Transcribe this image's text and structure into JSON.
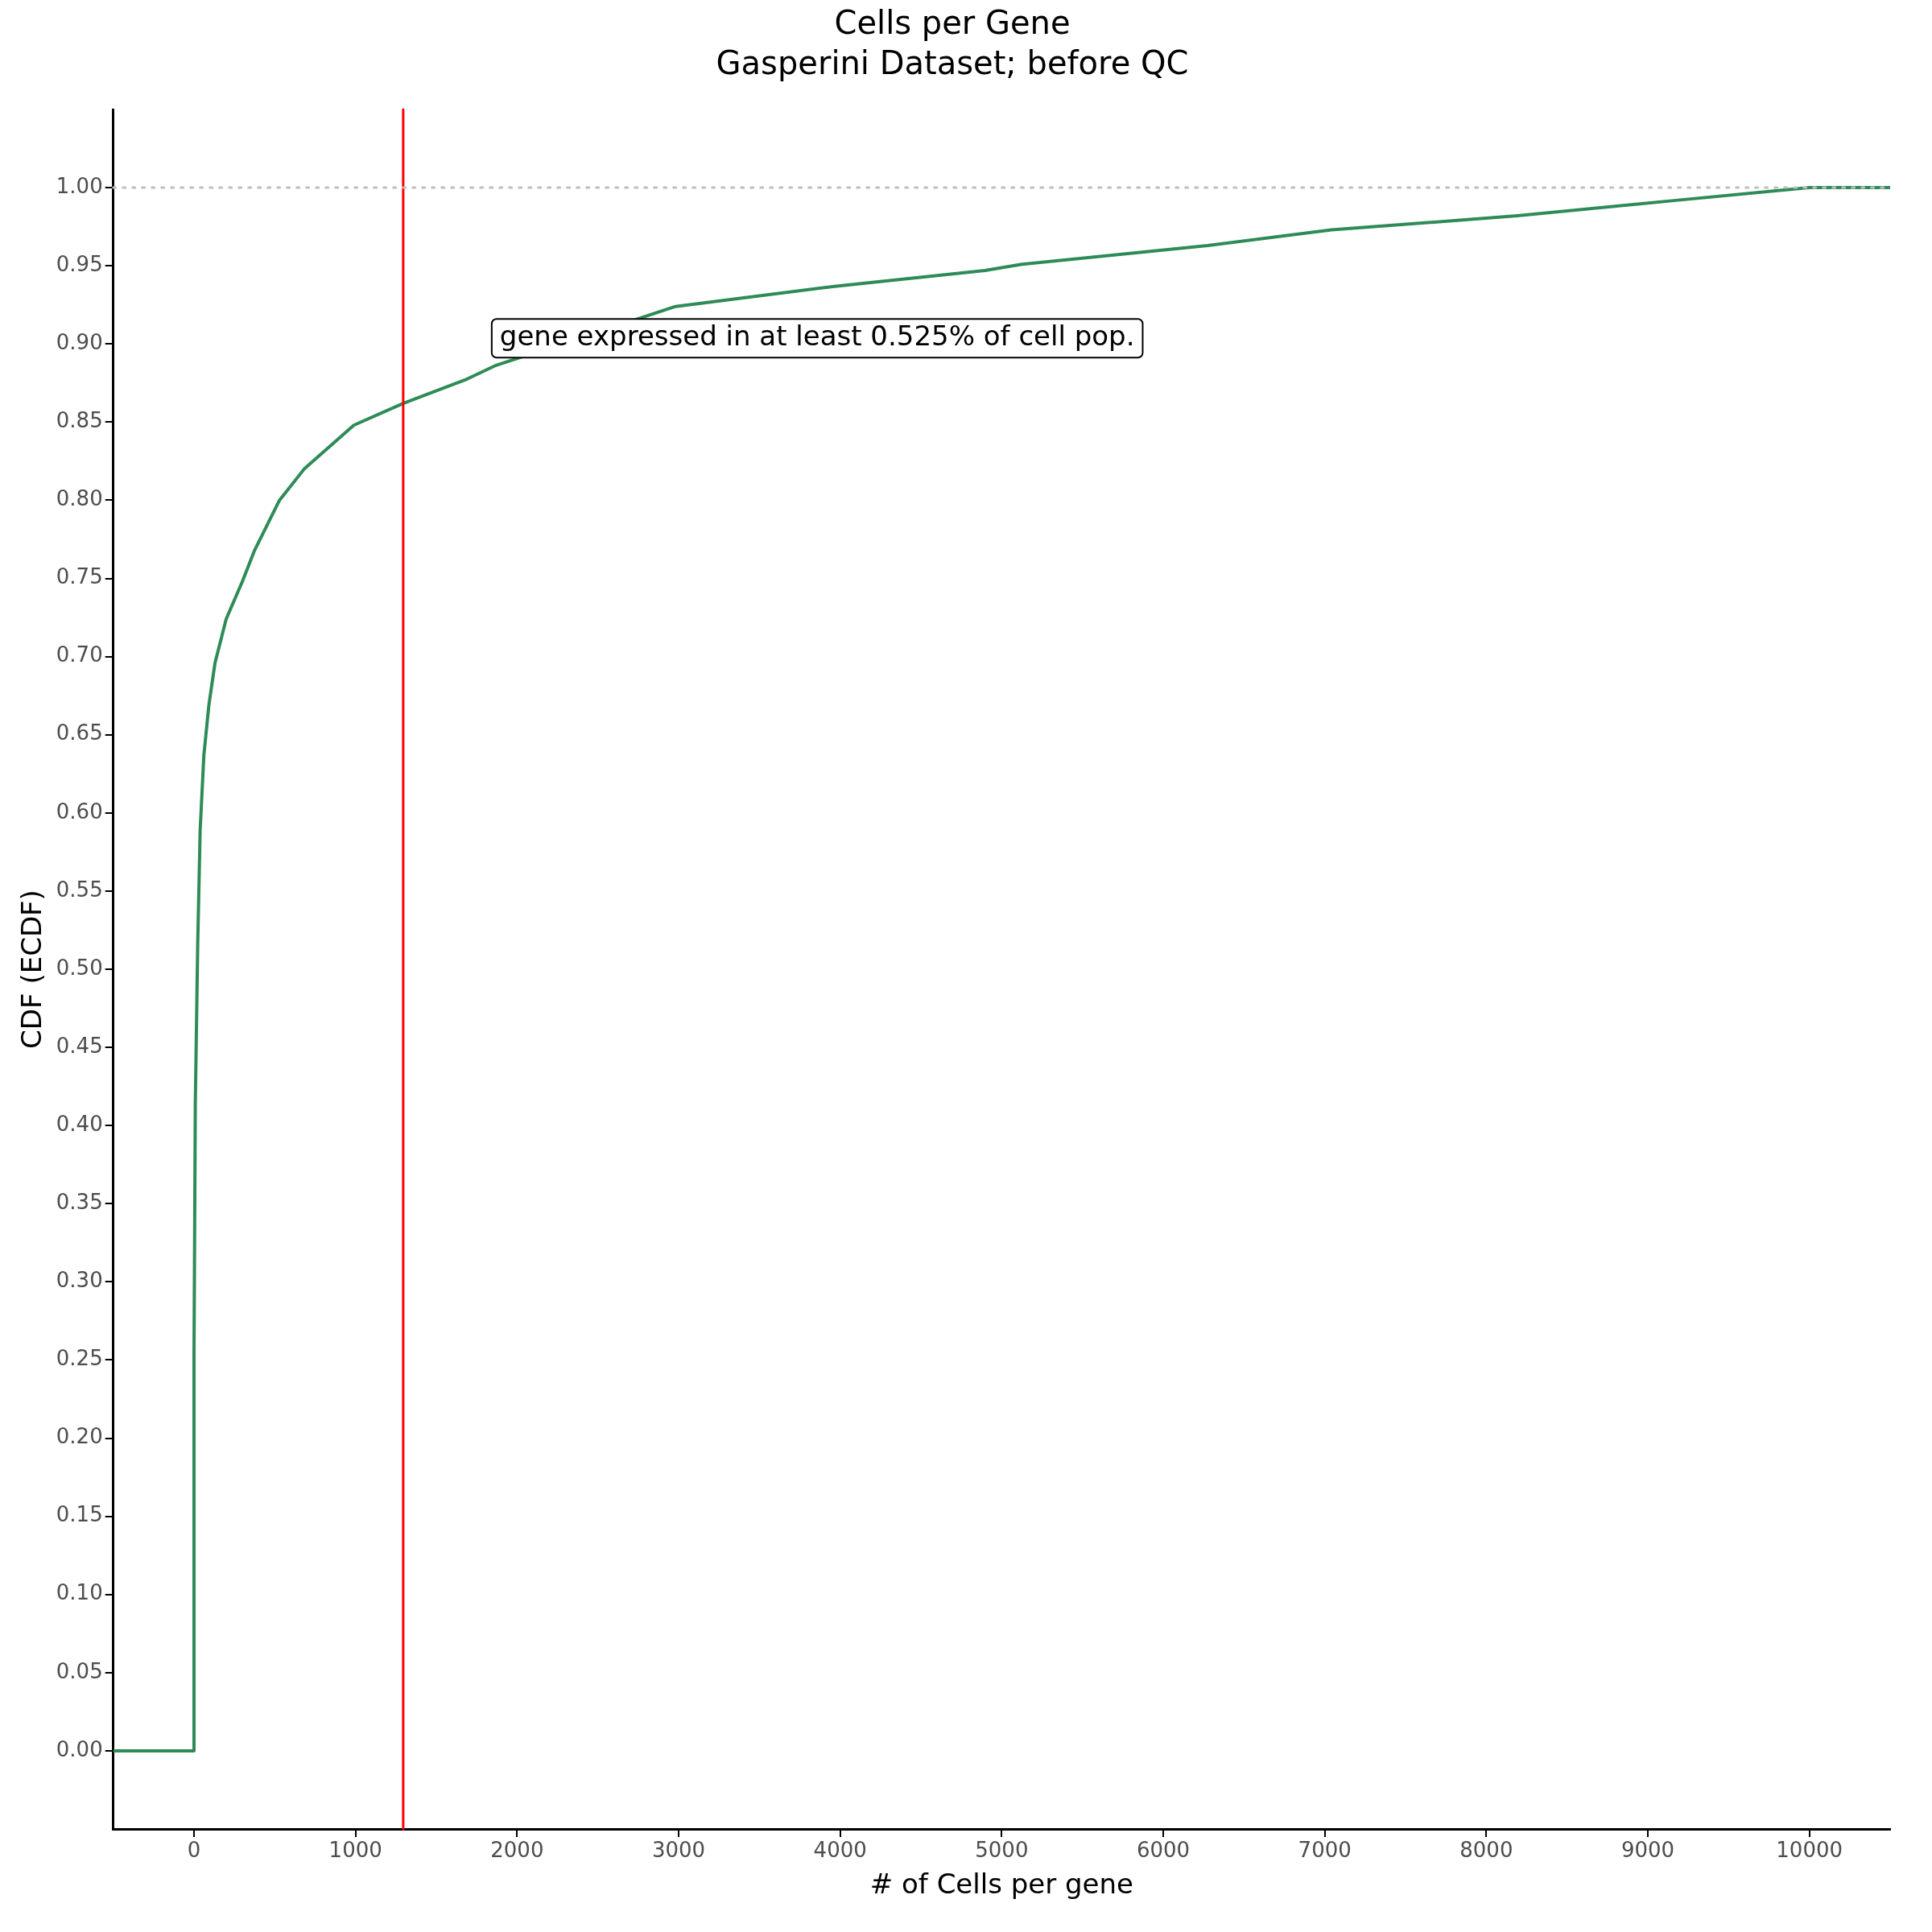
{
  "chart_data": {
    "type": "line",
    "title": "Cells per Gene",
    "subtitle": "Gasperini Dataset; before QC",
    "xlabel": "# of Cells per gene",
    "ylabel": "CDF (ECDF)",
    "series": [
      {
        "color": "#2e8b57",
        "x": [
          -500,
          0,
          0,
          8,
          23,
          38,
          61,
          92,
          130,
          199,
          299,
          375,
          529,
          682,
          989,
          1295,
          1678,
          1862,
          2981,
          3977,
          4897,
          5126,
          6276,
          7042,
          8192,
          9188,
          10000,
          10500
        ],
        "values": [
          0,
          0,
          0.254,
          0.414,
          0.517,
          0.589,
          0.637,
          0.669,
          0.696,
          0.724,
          0.748,
          0.768,
          0.8,
          0.82,
          0.848,
          0.862,
          0.877,
          0.886,
          0.924,
          0.937,
          0.947,
          0.951,
          0.963,
          0.973,
          0.982,
          0.992,
          1,
          1
        ]
      }
    ],
    "xlim": [
      -500,
      10500
    ],
    "xticks": [
      0,
      1000,
      2000,
      3000,
      4000,
      5000,
      6000,
      7000,
      8000,
      9000,
      10000
    ],
    "ylim": [
      -0.05,
      1.05
    ],
    "yticks": [
      {
        "value": 0,
        "label": "0.00"
      },
      0.05,
      {
        "value": 0.1,
        "label": "0.10"
      },
      0.15,
      {
        "value": 0.2,
        "label": "0.20"
      },
      0.25,
      {
        "value": 0.3,
        "label": "0.30"
      },
      0.35,
      {
        "value": 0.4,
        "label": "0.40"
      },
      0.45,
      {
        "value": 0.5,
        "label": "0.50"
      },
      0.55,
      {
        "value": 0.6,
        "label": "0.60"
      },
      0.65,
      {
        "value": 0.7,
        "label": "0.70"
      },
      0.75,
      {
        "value": 0.8,
        "label": "0.80"
      },
      0.85,
      {
        "value": 0.9,
        "label": "0.90"
      },
      0.95,
      {
        "value": 1,
        "label": "1.00"
      }
    ],
    "ref_lines": [
      {
        "axis": "x",
        "value": 1295,
        "color": "#ff0000",
        "line_style": "solid"
      },
      {
        "axis": "y",
        "value": 1,
        "color": "#bebebe",
        "line_style": "dotted"
      }
    ],
    "annotations": [
      "gene expressed in at least 0.525% of cell pop."
    ],
    "grid": false,
    "legend": false,
    "marker": "none",
    "line_style": "solid"
  }
}
